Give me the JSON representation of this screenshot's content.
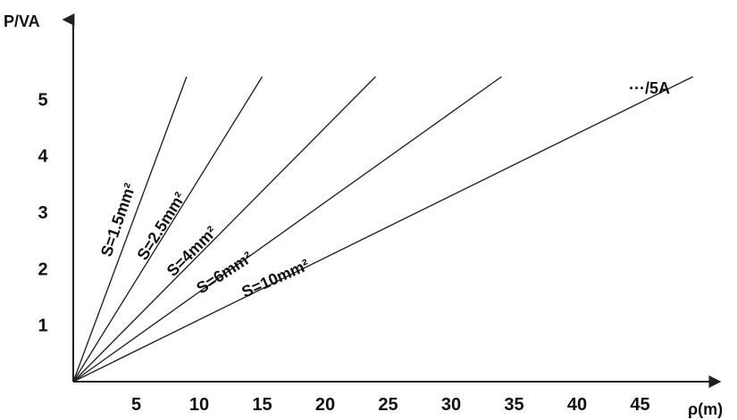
{
  "chart_data": {
    "type": "line",
    "xlabel": "ρ(m)",
    "ylabel": "P/VA",
    "xlim": [
      0,
      50
    ],
    "ylim": [
      0,
      6
    ],
    "x_ticks": [
      5,
      10,
      15,
      20,
      25,
      30,
      35,
      40,
      45
    ],
    "y_ticks": [
      1,
      2,
      3,
      4,
      5
    ],
    "series": [
      {
        "name": "S=1.5mm²",
        "x": [
          0,
          9.0
        ],
        "y": [
          0,
          5.4
        ]
      },
      {
        "name": "S=2.5mm²",
        "x": [
          0,
          15.0
        ],
        "y": [
          0,
          5.4
        ]
      },
      {
        "name": "S=4mm²",
        "x": [
          0,
          24.0
        ],
        "y": [
          0,
          5.4
        ]
      },
      {
        "name": "S=6mm²",
        "x": [
          0,
          34.0
        ],
        "y": [
          0,
          5.4
        ]
      },
      {
        "name": "S=10mm²",
        "x": [
          0,
          49.2
        ],
        "y": [
          0,
          5.4
        ]
      }
    ],
    "annotations": [
      "···/5A"
    ],
    "grid": false,
    "legend": "none"
  }
}
